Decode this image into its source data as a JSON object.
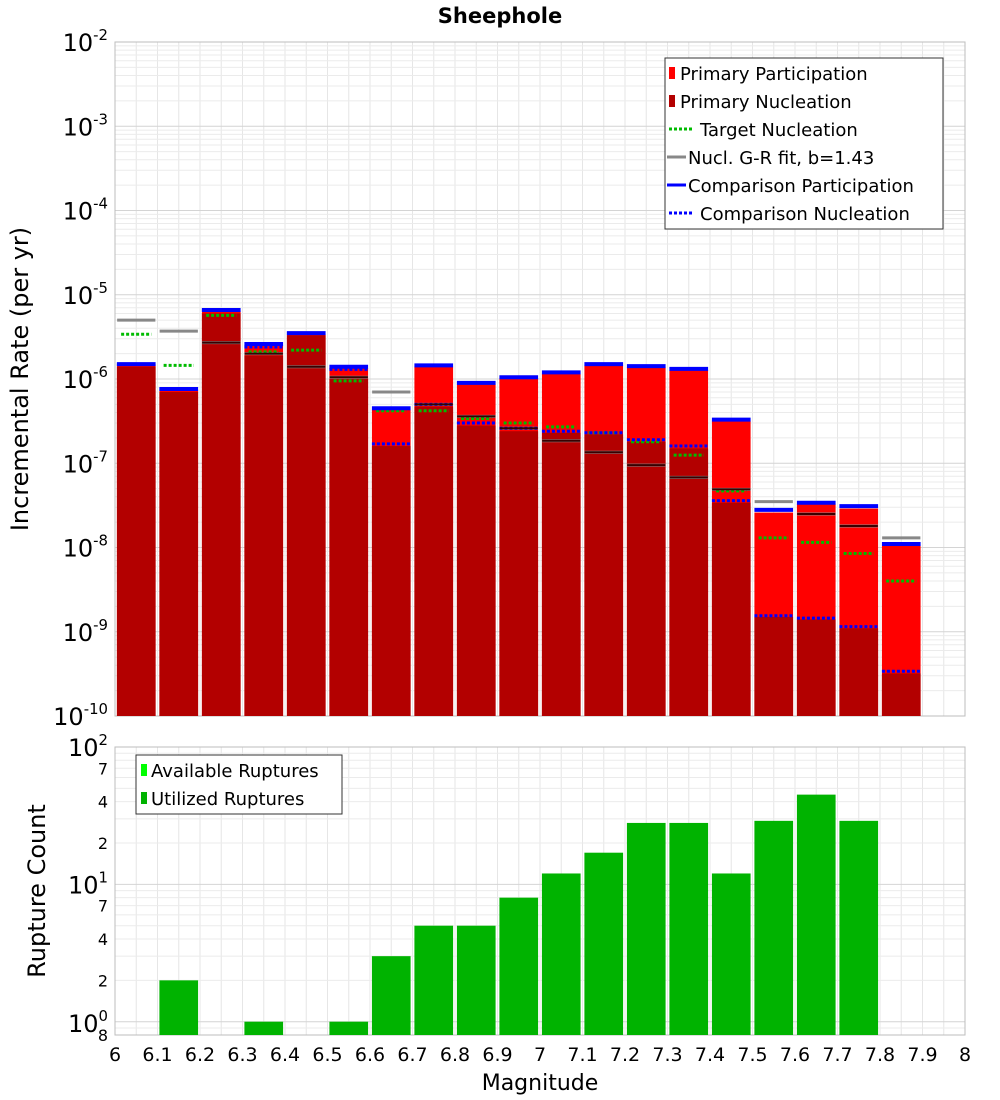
{
  "chart_data": [
    {
      "type": "bar",
      "title": "Sheephole",
      "ylabel": "Incremental Rate (per yr)",
      "xlabel": "",
      "yscale": "log",
      "ylim": [
        1e-10,
        0.01
      ],
      "xlim": [
        6.0,
        8.0
      ],
      "bin_width": 0.1,
      "y_tick_labels": [
        {
          "base": "10",
          "exp": "-2"
        },
        {
          "base": "10",
          "exp": "-3"
        },
        {
          "base": "10",
          "exp": "-4"
        },
        {
          "base": "10",
          "exp": "-5"
        },
        {
          "base": "10",
          "exp": "-6"
        },
        {
          "base": "10",
          "exp": "-7"
        },
        {
          "base": "10",
          "exp": "-8"
        },
        {
          "base": "10",
          "exp": "-9"
        },
        {
          "base": "10",
          "exp": "-10"
        }
      ],
      "grid": true,
      "legend_position": "top-right",
      "legend": [
        "Primary Participation",
        "Primary Nucleation",
        "Target Nucleation",
        "Nucl. G-R fit, b=1.43",
        "Comparison Participation",
        "Comparison Nucleation"
      ],
      "x": [
        6.05,
        6.15,
        6.25,
        6.35,
        6.45,
        6.55,
        6.65,
        6.75,
        6.85,
        6.95,
        7.05,
        7.15,
        7.25,
        7.35,
        7.45,
        7.55,
        7.65,
        7.75,
        7.85
      ],
      "series": [
        {
          "name": "Primary Participation",
          "color": "#ff0000",
          "values": [
            1.5e-06,
            7.5e-07,
            6.5e-06,
            2.5e-06,
            3.4e-06,
            1.35e-06,
            4.3e-07,
            1.4e-06,
            8.7e-07,
            1.02e-06,
            1.15e-06,
            1.45e-06,
            1.38e-06,
            1.28e-06,
            3.2e-07,
            2.6e-08,
            3.3e-08,
            2.9e-08,
            1.05e-08
          ]
        },
        {
          "name": "Primary Nucleation",
          "color": "#b30000",
          "values": [
            1.4e-06,
            7e-07,
            6e-06,
            1.9e-06,
            3.3e-06,
            1e-06,
            1.6e-07,
            4.7e-07,
            2.8e-07,
            2.4e-07,
            2.3e-07,
            2.2e-07,
            1.8e-07,
            1.5e-07,
            3.4e-08,
            1.5e-09,
            1.4e-09,
            1.1e-09,
            3.2e-10
          ]
        },
        {
          "name": "Target Nucleation",
          "color": "#00bb00",
          "values": [
            3.4e-06,
            1.45e-06,
            5.7e-06,
            2.1e-06,
            2.2e-06,
            9.5e-07,
            4.2e-07,
            4.2e-07,
            3.4e-07,
            3e-07,
            2.7e-07,
            2.3e-07,
            1.8e-07,
            1.25e-07,
            4.7e-08,
            1.3e-08,
            1.15e-08,
            8.5e-09,
            4e-09
          ]
        },
        {
          "name": "Nucl. G-R fit, b=1.43",
          "color": "#888888",
          "values": [
            5e-06,
            3.7e-06,
            2.7e-06,
            2e-06,
            1.4e-06,
            1.05e-06,
            7e-07,
            5e-07,
            3.6e-07,
            2.6e-07,
            1.85e-07,
            1.35e-07,
            9.5e-08,
            6.8e-08,
            4.9e-08,
            3.5e-08,
            2.5e-08,
            1.8e-08,
            1.3e-08
          ]
        },
        {
          "name": "Comparison Participation",
          "color": "#0000ff",
          "values": [
            1.5e-06,
            7.6e-07,
            6.6e-06,
            2.6e-06,
            3.5e-06,
            1.4e-06,
            4.5e-07,
            1.45e-06,
            9e-07,
            1.05e-06,
            1.2e-06,
            1.5e-06,
            1.42e-06,
            1.32e-06,
            3.3e-07,
            2.8e-08,
            3.4e-08,
            3.1e-08,
            1.1e-08
          ]
        },
        {
          "name": "Comparison Nucleation",
          "color": "#0000ff",
          "values": [
            1.5e-06,
            7.6e-07,
            6.6e-06,
            2.4e-06,
            3.5e-06,
            1.3e-06,
            1.7e-07,
            5e-07,
            3e-07,
            2.6e-07,
            2.4e-07,
            2.3e-07,
            1.9e-07,
            1.6e-07,
            3.6e-08,
            1.55e-09,
            1.45e-09,
            1.15e-09,
            3.4e-10
          ]
        }
      ]
    },
    {
      "type": "bar",
      "title": "",
      "ylabel": "Rupture Count",
      "xlabel": "Magnitude",
      "yscale": "log",
      "ylim": [
        0.8,
        100
      ],
      "xlim": [
        6.0,
        8.0
      ],
      "bin_width": 0.1,
      "y_tick_labels": [
        {
          "v": 100,
          "base": "10",
          "exp": "2"
        },
        {
          "v": 70,
          "base": "7",
          "exp": ""
        },
        {
          "v": 40,
          "base": "4",
          "exp": ""
        },
        {
          "v": 20,
          "base": "2",
          "exp": ""
        },
        {
          "v": 10,
          "base": "10",
          "exp": "1"
        },
        {
          "v": 7,
          "base": "7",
          "exp": ""
        },
        {
          "v": 4,
          "base": "4",
          "exp": ""
        },
        {
          "v": 2,
          "base": "2",
          "exp": ""
        },
        {
          "v": 1,
          "base": "10",
          "exp": "0"
        },
        {
          "v": 0.8,
          "base": "8",
          "exp": ""
        }
      ],
      "x_tick_labels": [
        "6",
        "6.1",
        "6.2",
        "6.3",
        "6.4",
        "6.5",
        "6.6",
        "6.7",
        "6.8",
        "6.9",
        "7",
        "7.1",
        "7.2",
        "7.3",
        "7.4",
        "7.5",
        "7.6",
        "7.7",
        "7.8",
        "7.9",
        "8"
      ],
      "grid": true,
      "legend_position": "top-left",
      "legend": [
        "Available Ruptures",
        "Utilized Ruptures"
      ],
      "x": [
        6.05,
        6.15,
        6.25,
        6.35,
        6.45,
        6.55,
        6.65,
        6.75,
        6.85,
        6.95,
        7.05,
        7.15,
        7.25,
        7.35,
        7.45,
        7.55,
        7.65,
        7.75,
        7.85
      ],
      "series": [
        {
          "name": "Available Ruptures",
          "color": "#00ff00",
          "values": [
            0,
            2,
            0,
            1,
            0,
            1,
            3,
            5,
            5,
            8,
            12,
            17,
            28,
            28,
            12,
            29,
            45,
            29,
            0
          ]
        },
        {
          "name": "Utilized Ruptures",
          "color": "#00b300",
          "values": [
            0,
            2,
            0,
            1,
            0,
            1,
            3,
            5,
            5,
            8,
            12,
            17,
            28,
            28,
            12,
            29,
            45,
            29,
            0
          ]
        }
      ]
    }
  ]
}
